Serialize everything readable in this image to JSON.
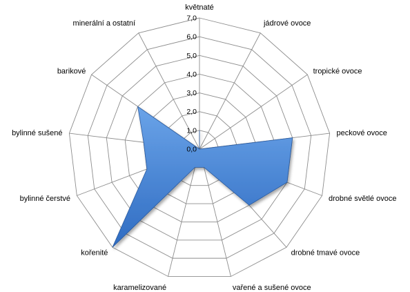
{
  "chart_data": {
    "type": "radar",
    "title": "",
    "categories": [
      "květnaté",
      "jádrové ovoce",
      "tropické ovoce",
      "peckové ovoce",
      "drobné světlé ovoce",
      "drobné tmavé ovoce",
      "vařené a sušené ovoce",
      "karamelizované",
      "kořenité",
      "bylinné čerstvé",
      "bylinné sušené",
      "barikové",
      "minerální a ostatní"
    ],
    "values": [
      1.0,
      0.0,
      0.0,
      5.0,
      5.0,
      4.0,
      1.0,
      1.0,
      7.0,
      3.0,
      3.0,
      4.0,
      0.0
    ],
    "rlim": [
      0,
      7
    ],
    "ticks": [
      "0,0",
      "1,0",
      "2,0",
      "3,0",
      "4,0",
      "5,0",
      "6,0",
      "7,0"
    ],
    "grid": true,
    "legend": "none",
    "colors": {
      "fill": "#3a78cc",
      "fill_light": "#5d97e0",
      "stroke": "#2a5a9e",
      "grid": "#8c8c8c"
    }
  }
}
